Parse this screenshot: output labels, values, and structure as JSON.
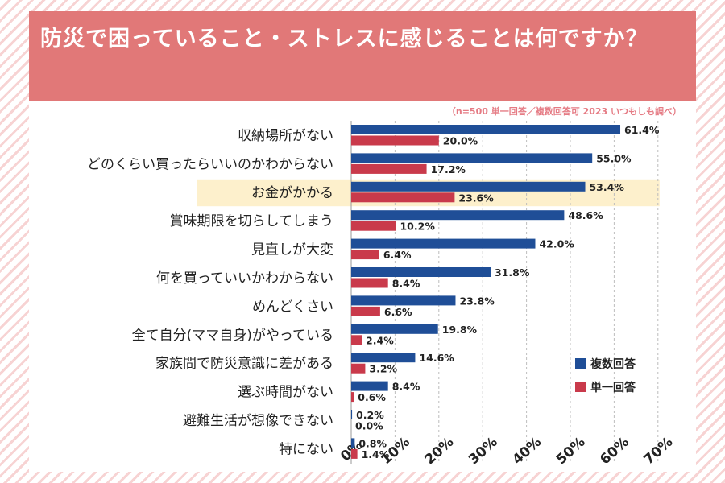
{
  "title": "防災で困っていること・ストレスに感じることは何ですか？",
  "note": "（n=500 単一回答／複数回答可 2023 いつもしも調べ）",
  "colors": {
    "banner": "#e17878",
    "multi": "#1f4e97",
    "single": "#c93a4b",
    "highlight": "#fdf0cc",
    "note": "#e57b84"
  },
  "chart_data": {
    "type": "bar",
    "orientation": "horizontal",
    "title": "防災で困っていること・ストレスに感じることは何ですか？",
    "categories": [
      "収納場所がない",
      "どのくらい買ったらいいのかわからない",
      "お金がかかる",
      "賞味期限を切らしてしまう",
      "見直しが大変",
      "何を買っていいかわからない",
      "めんどくさい",
      "全て自分(ママ自身)がやっている",
      "家族間で防災意識に差がある",
      "選ぶ時間がない",
      "避難生活が想像できない",
      "特にない"
    ],
    "series": [
      {
        "name": "複数回答",
        "color": "#1f4e97",
        "values": [
          61.4,
          55.0,
          53.4,
          48.6,
          42.0,
          31.8,
          23.8,
          19.8,
          14.6,
          8.4,
          0.2,
          0.8
        ]
      },
      {
        "name": "単一回答",
        "color": "#c93a4b",
        "values": [
          20.0,
          17.2,
          23.6,
          10.2,
          6.4,
          8.4,
          6.6,
          2.4,
          3.2,
          0.6,
          0.0,
          1.4
        ]
      }
    ],
    "value_suffix": "%",
    "xlim": [
      0,
      70
    ],
    "xticks": [
      "0%",
      "10%",
      "20%",
      "30%",
      "40%",
      "50%",
      "60%",
      "70%"
    ],
    "highlight_category": "お金がかかる",
    "grid": true,
    "legend_position": "bottom-right"
  }
}
